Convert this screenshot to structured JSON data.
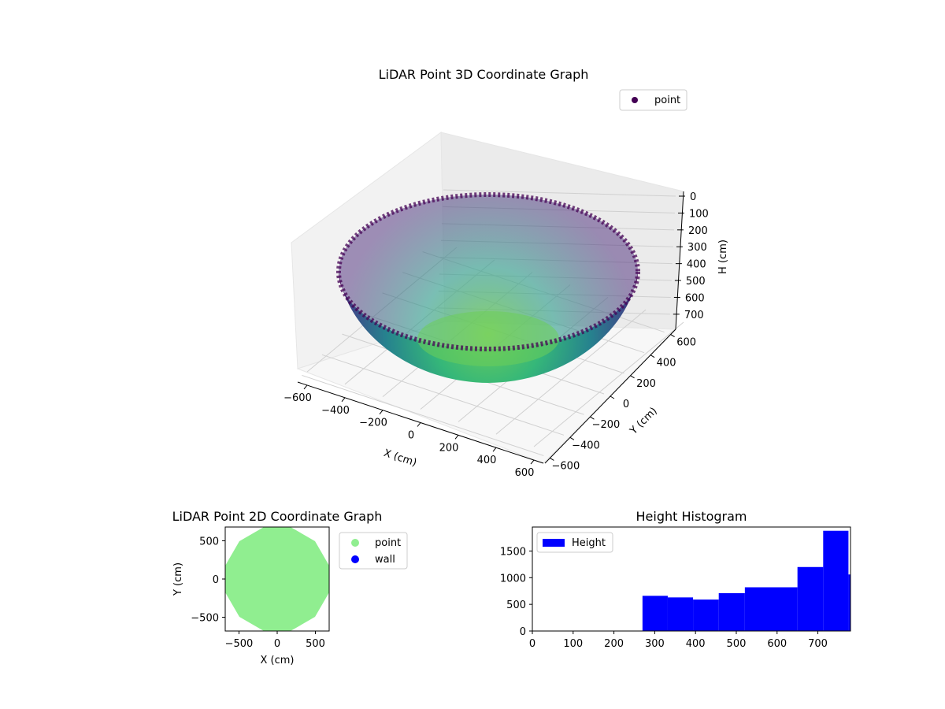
{
  "chart_data": [
    {
      "type": "scatter",
      "projection": "3d",
      "title": "LiDAR Point 3D Coordinate Graph",
      "xlabel": "X (cm)",
      "ylabel": "Y (cm)",
      "zlabel": "H (cm)",
      "xlim": [
        -650,
        650
      ],
      "ylim": [
        -650,
        650
      ],
      "zlim": [
        780,
        0
      ],
      "x_ticks": [
        "−600",
        "−400",
        "−200",
        "0",
        "200",
        "400",
        "600"
      ],
      "y_ticks": [
        "−600",
        "−400",
        "−200",
        "0",
        "200",
        "400",
        "600"
      ],
      "z_ticks": [
        "0",
        "100",
        "200",
        "300",
        "400",
        "500",
        "600",
        "700"
      ],
      "z_inverted": true,
      "colormap": "viridis",
      "surface": {
        "shape": "bowl",
        "rim_radius": 650,
        "rim_height": 0,
        "bottom_height": 780
      },
      "legend": [
        {
          "label": "point",
          "color": "#440154",
          "marker": "circle"
        }
      ],
      "legend_position": "upper-right",
      "grid": true
    },
    {
      "type": "scatter",
      "title": "LiDAR Point 2D Coordinate Graph",
      "xlabel": "X (cm)",
      "ylabel": "Y (cm)",
      "xlim": [
        -680,
        680
      ],
      "ylim": [
        -680,
        680
      ],
      "x_ticks": [
        "−500",
        "0",
        "500"
      ],
      "y_ticks": [
        "−500",
        "0",
        "500"
      ],
      "series": [
        {
          "name": "point",
          "color": "#90ee90",
          "region": "filled-polygon",
          "radius": 700,
          "sides": 12
        },
        {
          "name": "wall",
          "color": "#0000ff",
          "points": []
        }
      ],
      "legend_position": "outside-right"
    },
    {
      "type": "bar",
      "title": "Height Histogram",
      "xlim": [
        0,
        780
      ],
      "ylim": [
        0,
        1950
      ],
      "x_ticks": [
        "0",
        "100",
        "200",
        "300",
        "400",
        "500",
        "600",
        "700"
      ],
      "y_ticks": [
        "0",
        "500",
        "1000",
        "1500"
      ],
      "bins": [
        {
          "start": 270,
          "end": 332,
          "count": 660
        },
        {
          "start": 332,
          "end": 394,
          "count": 630
        },
        {
          "start": 394,
          "end": 457,
          "count": 590
        },
        {
          "start": 457,
          "end": 521,
          "count": 710
        },
        {
          "start": 521,
          "end": 585,
          "count": 820
        },
        {
          "start": 585,
          "end": 650,
          "count": 820
        },
        {
          "start": 650,
          "end": 713,
          "count": 1200
        },
        {
          "start": 713,
          "end": 775,
          "count": 1880
        },
        {
          "start": 775,
          "end": 780,
          "count": 1060
        }
      ],
      "series": [
        {
          "name": "Height",
          "color": "#0000ff"
        }
      ],
      "legend_position": "upper-left"
    }
  ]
}
